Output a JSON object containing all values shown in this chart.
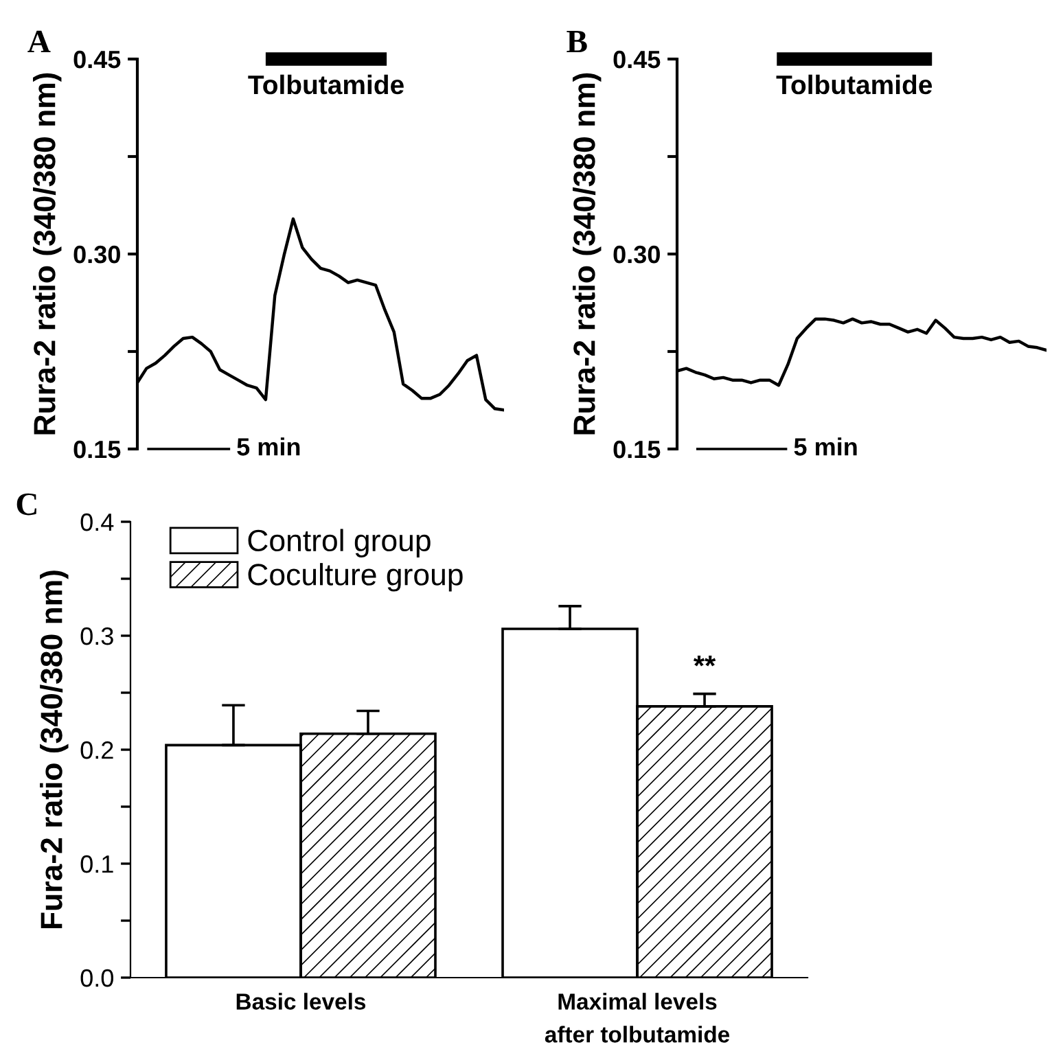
{
  "chart_data": [
    {
      "type": "line",
      "title": "A",
      "ylabel": "Rura-2 ratio (340/380 nm)",
      "categories": [
        null,
        null,
        null,
        null,
        null,
        null,
        null,
        null,
        null,
        null,
        null,
        null,
        null,
        null,
        null,
        null,
        null,
        null,
        null,
        null,
        null,
        null,
        null,
        null,
        null,
        null,
        null,
        null,
        null,
        null,
        null,
        null,
        null,
        null,
        null,
        null,
        null,
        null,
        null,
        null,
        null
      ],
      "series": [
        {
          "color": "#000000",
          "values": [
            0.201,
            0.212,
            0.216,
            0.222,
            0.229,
            0.235,
            0.236,
            0.231,
            0.225,
            0.211,
            0.207,
            0.203,
            0.199,
            0.197,
            0.188,
            0.268,
            0.299,
            0.327,
            0.305,
            0.296,
            0.289,
            0.287,
            0.283,
            0.278,
            0.28,
            0.278,
            0.276,
            0.257,
            0.24,
            0.2,
            0.195,
            0.189,
            0.189,
            0.192,
            0.199,
            0.208,
            0.218,
            0.222,
            0.188,
            0.181,
            0.18
          ]
        }
      ],
      "ylim": [
        0.15,
        0.45
      ],
      "yticks": [
        {
          "value": 0.15,
          "label": "0.15"
        },
        {
          "value": 0.225,
          "label": null
        },
        {
          "value": 0.3,
          "label": "0.30"
        },
        {
          "value": 0.375,
          "label": null
        },
        {
          "value": 0.45,
          "label": "0.45"
        }
      ],
      "tick_labels": "y",
      "grid": false,
      "legend": false,
      "annotations": [
        "Tolbutamide",
        "5 min"
      ]
    },
    {
      "type": "line",
      "title": "B",
      "ylabel": "Rura-2 ratio (340/380 nm)",
      "categories": [
        null,
        null,
        null,
        null,
        null,
        null,
        null,
        null,
        null,
        null,
        null,
        null,
        null,
        null,
        null,
        null,
        null,
        null,
        null,
        null,
        null,
        null,
        null,
        null,
        null,
        null,
        null,
        null,
        null,
        null,
        null,
        null,
        null,
        null,
        null,
        null,
        null,
        null,
        null,
        null,
        null
      ],
      "series": [
        {
          "color": "#000000",
          "values": [
            0.21,
            0.212,
            0.209,
            0.207,
            0.204,
            0.205,
            0.203,
            0.203,
            0.201,
            0.203,
            0.203,
            0.199,
            0.215,
            0.235,
            0.243,
            0.25,
            0.25,
            0.249,
            0.247,
            0.25,
            0.247,
            0.248,
            0.246,
            0.246,
            0.243,
            0.24,
            0.242,
            0.239,
            0.249,
            0.243,
            0.236,
            0.235,
            0.235,
            0.236,
            0.234,
            0.236,
            0.232,
            0.233,
            0.229,
            0.228,
            0.226
          ]
        }
      ],
      "ylim": [
        0.15,
        0.45
      ],
      "yticks": [
        {
          "value": 0.15,
          "label": "0.15"
        },
        {
          "value": 0.225,
          "label": null
        },
        {
          "value": 0.3,
          "label": "0.30"
        },
        {
          "value": 0.375,
          "label": null
        },
        {
          "value": 0.45,
          "label": "0.45"
        }
      ],
      "tick_labels": "y",
      "grid": false,
      "legend": false,
      "annotations": [
        "Tolbutamide",
        "5 min"
      ]
    },
    {
      "type": "bar",
      "title": "C",
      "ylabel": "Fura-2 ratio (340/380 nm)",
      "categories": [
        "Basic levels",
        "Maximal levels\nafter tolbutamide"
      ],
      "series": [
        {
          "name": "Control group",
          "color": "#ffffff",
          "values": [
            0.204,
            0.306
          ],
          "errors": [
            [
              0.204,
              0.239
            ],
            [
              0.306,
              0.326
            ]
          ]
        },
        {
          "name": "Coculture group",
          "color": "#000000",
          "values": [
            0.214,
            0.238
          ],
          "errors": [
            [
              0.214,
              0.234
            ],
            [
              0.238,
              0.249
            ]
          ]
        }
      ],
      "ylim": [
        0.0,
        0.4
      ],
      "yticks": [
        {
          "value": 0.0,
          "label": "0.0"
        },
        {
          "value": 0.05,
          "label": null
        },
        0.1,
        {
          "value": 0.15,
          "label": null
        },
        0.2,
        {
          "value": 0.25,
          "label": null
        },
        0.3,
        {
          "value": 0.35,
          "label": null
        },
        0.4
      ],
      "grid": false,
      "legend": "top left",
      "annotations": [
        {
          "text": "**",
          "x": "Maximal levels\nafter tolbutamide",
          "y": 0.26
        }
      ]
    }
  ]
}
